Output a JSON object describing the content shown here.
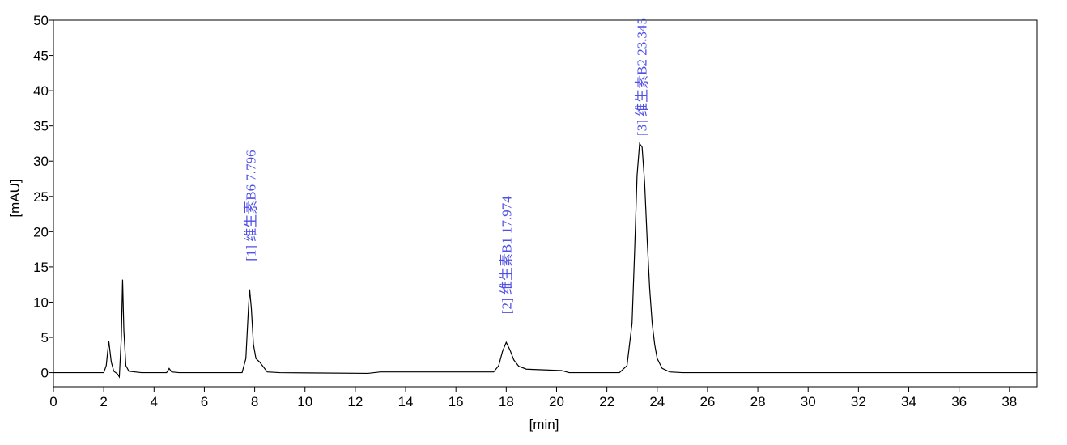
{
  "chart_data": {
    "type": "line",
    "x_label": "[min]",
    "y_label": "[mAU]",
    "xlim": [
      0,
      39.1
    ],
    "ylim": [
      -2,
      50
    ],
    "xticks": [
      0,
      2,
      4,
      6,
      8,
      10,
      12,
      14,
      16,
      18,
      20,
      22,
      24,
      26,
      28,
      30,
      32,
      34,
      36,
      38
    ],
    "yticks": [
      0,
      5,
      10,
      15,
      20,
      25,
      30,
      35,
      40,
      45,
      50
    ],
    "grid": false,
    "x": [
      0,
      2.0,
      2.1,
      2.2,
      2.3,
      2.4,
      2.55,
      2.62,
      2.7,
      2.75,
      2.8,
      2.88,
      3.0,
      3.5,
      4.5,
      4.6,
      4.7,
      5,
      7.5,
      7.65,
      7.75,
      7.8,
      7.87,
      7.95,
      8.05,
      8.2,
      8.35,
      8.5,
      9,
      12.5,
      13,
      17.5,
      17.7,
      17.85,
      18.0,
      18.15,
      18.3,
      18.5,
      18.8,
      19.5,
      20.2,
      20.5,
      22.5,
      22.8,
      23.0,
      23.1,
      23.2,
      23.3,
      23.4,
      23.5,
      23.6,
      23.7,
      23.8,
      23.9,
      24.0,
      24.2,
      24.5,
      25,
      39.1
    ],
    "series": [
      {
        "color": "#000000",
        "values": [
          0,
          0,
          1,
          4.5,
          1.5,
          0.2,
          -0.2,
          -0.6,
          5,
          13.2,
          6,
          1,
          0.2,
          0,
          0,
          0.6,
          0.1,
          0,
          0,
          2,
          9,
          11.8,
          9,
          4,
          2,
          1.5,
          0.8,
          0.1,
          0,
          -0.1,
          0.1,
          0.1,
          1,
          3,
          4.3,
          3.2,
          1.8,
          0.9,
          0.5,
          0.4,
          0.3,
          0,
          0,
          1,
          7,
          17,
          28,
          32.5,
          32,
          27,
          19,
          12,
          7,
          4,
          2,
          0.6,
          0.1,
          0,
          0
        ]
      }
    ],
    "annotations": [
      {
        "text": "[1] 维生素B6  7.796",
        "x": 7.796
      },
      {
        "text": "[2] 维生素B1  17.974",
        "x": 17.974
      },
      {
        "text": "[3] 维生素B2  23.345",
        "x": 23.345
      }
    ]
  }
}
